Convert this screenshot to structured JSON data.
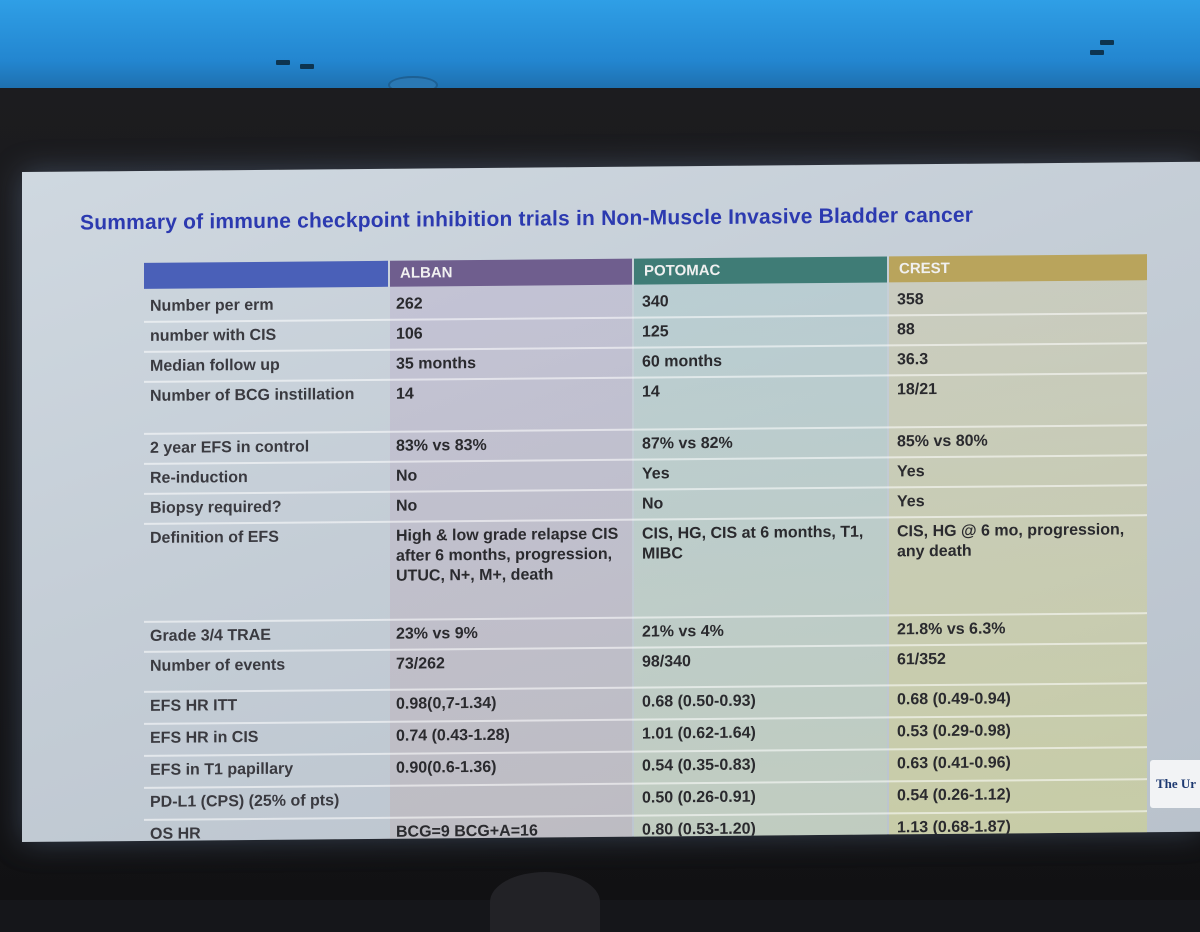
{
  "slide": {
    "title": "Summary of immune checkpoint inhibition trials in Non-Muscle Invasive Bladder cancer",
    "columns": [
      "ALBAN",
      "POTOMAC",
      "CREST"
    ],
    "rows": [
      {
        "label": "Number per erm",
        "values": [
          "262",
          "340",
          "358"
        ]
      },
      {
        "label": "number with CIS",
        "values": [
          "106",
          "125",
          "88"
        ]
      },
      {
        "label": "Median follow up",
        "values": [
          "35 months",
          "60 months",
          "36.3"
        ]
      },
      {
        "label": "Number of BCG instillation",
        "values": [
          "14",
          "14",
          "18/21"
        ]
      },
      {
        "label": "2 year EFS in control",
        "values": [
          "83% vs 83%",
          "87% vs 82%",
          "85% vs 80%"
        ]
      },
      {
        "label": "Re-induction",
        "values": [
          "No",
          "Yes",
          "Yes"
        ]
      },
      {
        "label": "Biopsy required?",
        "values": [
          "No",
          "No",
          "Yes"
        ]
      },
      {
        "label": "Definition of EFS",
        "values": [
          "High & low grade relapse CIS after 6 months, progression, UTUC, N+, M+, death",
          "CIS, HG, CIS at 6 months, T1, MIBC",
          "CIS, HG @ 6 mo, progression, any death"
        ]
      },
      {
        "label": "Grade 3/4 TRAE",
        "values": [
          "23% vs 9%",
          "21% vs 4%",
          "21.8% vs 6.3%"
        ]
      },
      {
        "label": "Number of events",
        "values": [
          "73/262",
          "98/340",
          "61/352"
        ]
      },
      {
        "label": "EFS HR ITT",
        "values": [
          "0.98(0,7-1.34)",
          "0.68 (0.50-0.93)",
          "0.68 (0.49-0.94)"
        ]
      },
      {
        "label": "EFS HR in CIS",
        "values": [
          "0.74 (0.43-1.28)",
          "1.01 (0.62-1.64)",
          "0.53 (0.29-0.98)"
        ]
      },
      {
        "label": "EFS in T1 papillary",
        "values": [
          "0.90(0.6-1.36)",
          "0.54 (0.35-0.83)",
          "0.63 (0.41-0.96)"
        ]
      },
      {
        "label": "PD-L1 (CPS) (25% of pts)",
        "values": [
          "",
          "0.50 (0.26-0.91)",
          "0.54 (0.26-1.12)"
        ]
      },
      {
        "label": "OS HR",
        "values": [
          "BCG=9 BCG+A=16",
          "0.80 (0.53-1.20)",
          "1.13 (0.68-1.87)"
        ]
      }
    ],
    "logo_text": "The Ur"
  }
}
